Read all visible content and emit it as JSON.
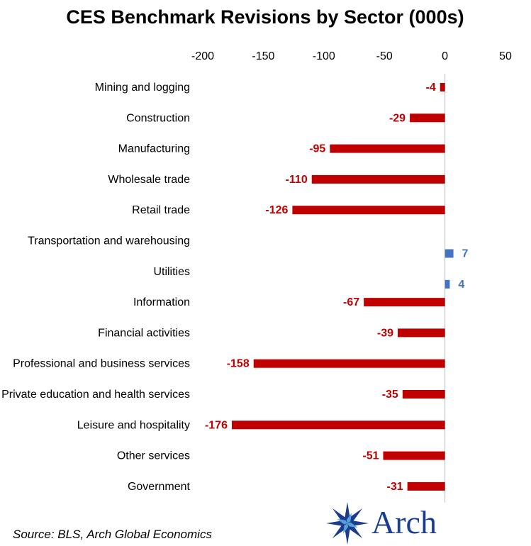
{
  "chart_data": {
    "type": "bar",
    "orientation": "horizontal",
    "title": "CES Benchmark Revisions by Sector (000s)",
    "xlim": [
      -200,
      50
    ],
    "xticks": [
      -200,
      -150,
      -100,
      -50,
      0,
      50
    ],
    "categories": [
      "Mining and logging",
      "Construction",
      "Manufacturing",
      "Wholesale trade",
      "Retail trade",
      "Transportation and warehousing",
      "Utilities",
      "Information",
      "Financial activities",
      "Professional and business services",
      "Private education and health services",
      "Leisure and hospitality",
      "Other services",
      "Government"
    ],
    "values": [
      -4,
      -29,
      -95,
      -110,
      -126,
      7,
      4,
      -67,
      -39,
      -158,
      -35,
      -176,
      -51,
      -31
    ],
    "colors": {
      "negative": "#c00000",
      "positive": "#4472c4",
      "axis": "#bfbfbf"
    },
    "legend": "none",
    "grid": false
  },
  "source": "Source: BLS, Arch Global Economics",
  "logo": {
    "text": "Arch",
    "icon": "arch-star-icon",
    "color": "#1b3d8f"
  }
}
